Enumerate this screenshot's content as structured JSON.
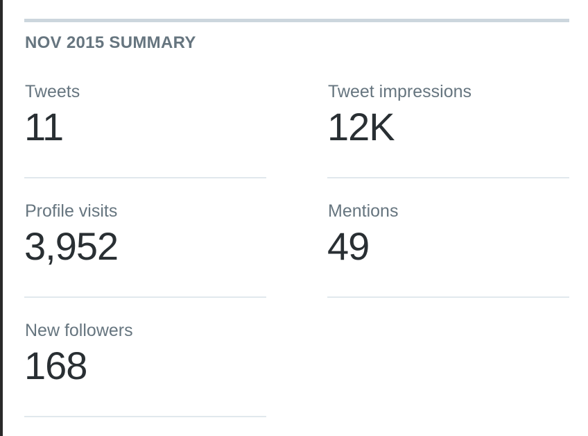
{
  "header": {
    "title": "NOV 2015 SUMMARY"
  },
  "stats": [
    {
      "label": "Tweets",
      "value": "11"
    },
    {
      "label": "Tweet impressions",
      "value": "12K"
    },
    {
      "label": "Profile visits",
      "value": "3,952"
    },
    {
      "label": "Mentions",
      "value": "49"
    },
    {
      "label": "New followers",
      "value": "168"
    }
  ]
}
